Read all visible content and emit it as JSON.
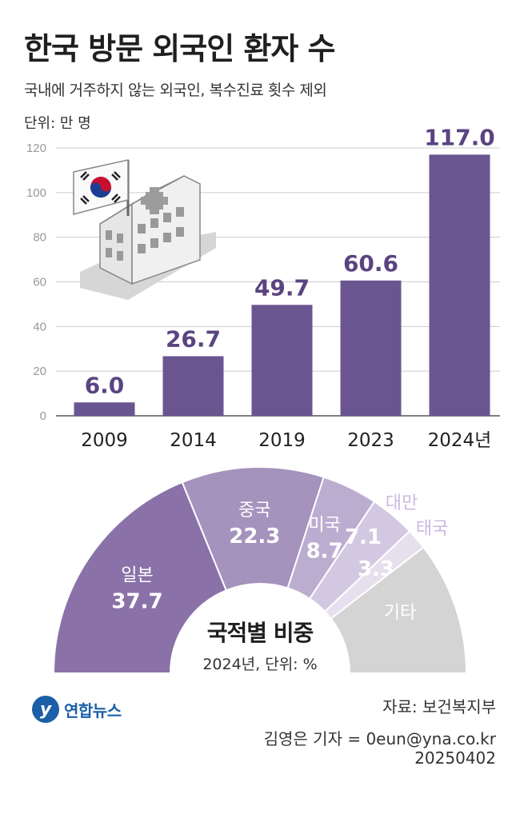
{
  "header": {
    "title": "한국 방문 외국인 환자 수",
    "subtitle": "국내에 거주하지 않는 외국인, 복수진료 횟수 제외",
    "unit": "단위: 만 명"
  },
  "chart_data": [
    {
      "type": "bar",
      "categories": [
        "2009",
        "2014",
        "2019",
        "2023",
        "2024년"
      ],
      "values": [
        6.0,
        26.7,
        49.7,
        60.6,
        117.0
      ],
      "value_labels": [
        "6.0",
        "26.7",
        "49.7",
        "60.6",
        "117.0"
      ],
      "ylim": [
        0,
        120
      ],
      "yticks": [
        "0",
        "20",
        "40",
        "60",
        "80",
        "100",
        "120"
      ],
      "grid": true,
      "bar_color": "#6b5591"
    },
    {
      "type": "pie",
      "title": "국적별 비중",
      "subtitle": "2024년, 단위: %",
      "slices": [
        {
          "label": "일본",
          "value": 37.7,
          "value_label": "37.7",
          "color": "#8a72a8"
        },
        {
          "label": "중국",
          "value": 22.3,
          "value_label": "22.3",
          "color": "#a592bd"
        },
        {
          "label": "미국",
          "value": 8.7,
          "value_label": "8.7",
          "color": "#bbadd0"
        },
        {
          "label": "대만",
          "value": 7.1,
          "value_label": "7.1",
          "color": "#d3c8e1"
        },
        {
          "label": "태국",
          "value": 3.3,
          "value_label": "3.3",
          "color": "#e6e0ee"
        },
        {
          "label": "기타",
          "value": 20.9,
          "value_label": "",
          "color": "#d4d4d4"
        }
      ]
    }
  ],
  "footer": {
    "logo_mark": "y",
    "logo_text": "연합뉴스",
    "source": "자료: 보건복지부",
    "credit": "김영은 기자 = 0eun@yna.co.kr",
    "date": "20250402"
  },
  "icons": [
    "hospital-building-icon",
    "korean-flag-icon"
  ]
}
